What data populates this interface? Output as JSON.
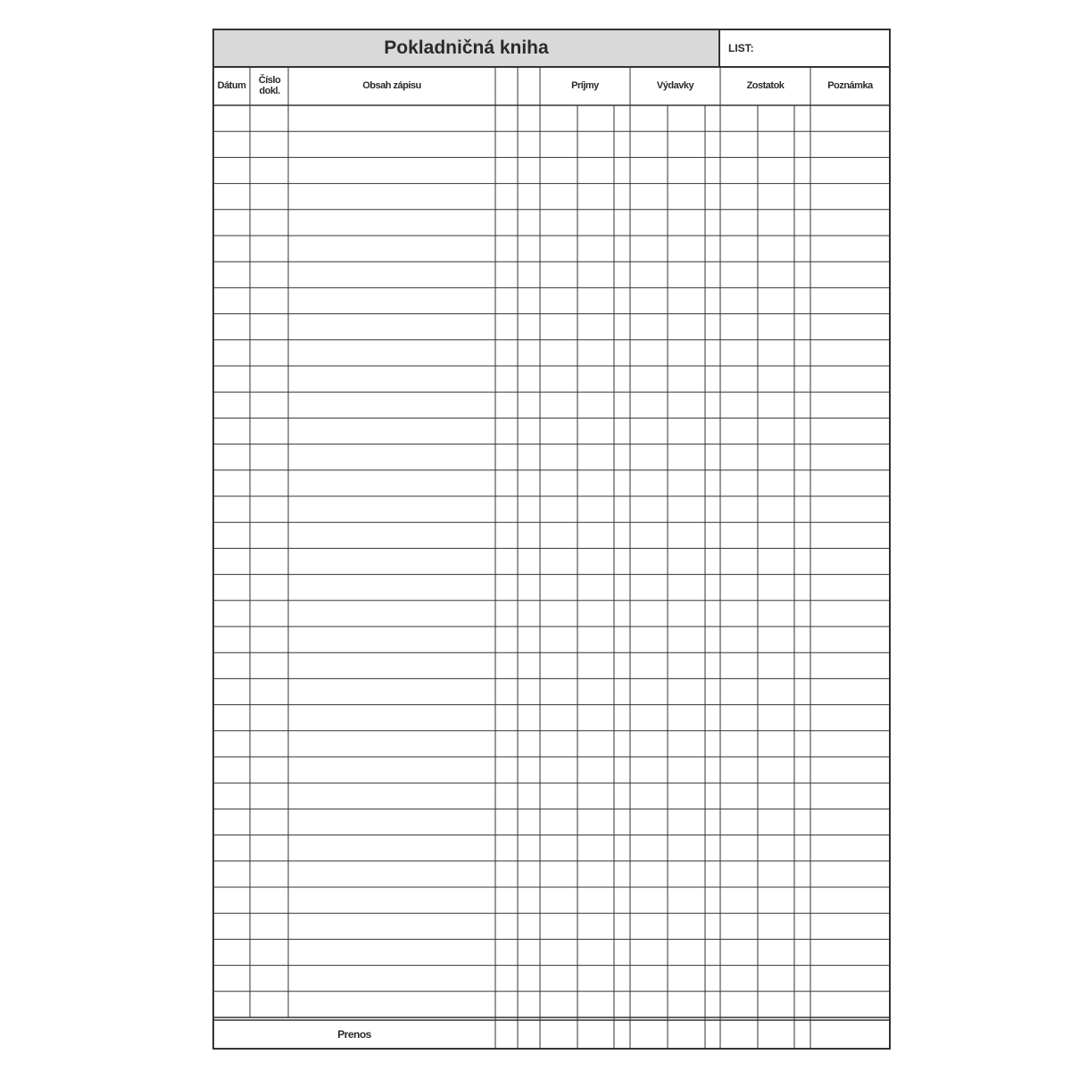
{
  "form": {
    "title": "Pokladničná kniha",
    "sheet_label": "LIST:",
    "columns": {
      "date": "Dátum",
      "doc_number": "Číslo dokl.",
      "content": "Obsah zápisu",
      "income": "Príjmy",
      "expenses": "Výdavky",
      "balance": "Zostatok",
      "note": "Poznámka"
    },
    "carry_over_label": "Prenos",
    "title_background": "#d9d9d9",
    "line_color": "#333333",
    "entry_rows": 35
  }
}
